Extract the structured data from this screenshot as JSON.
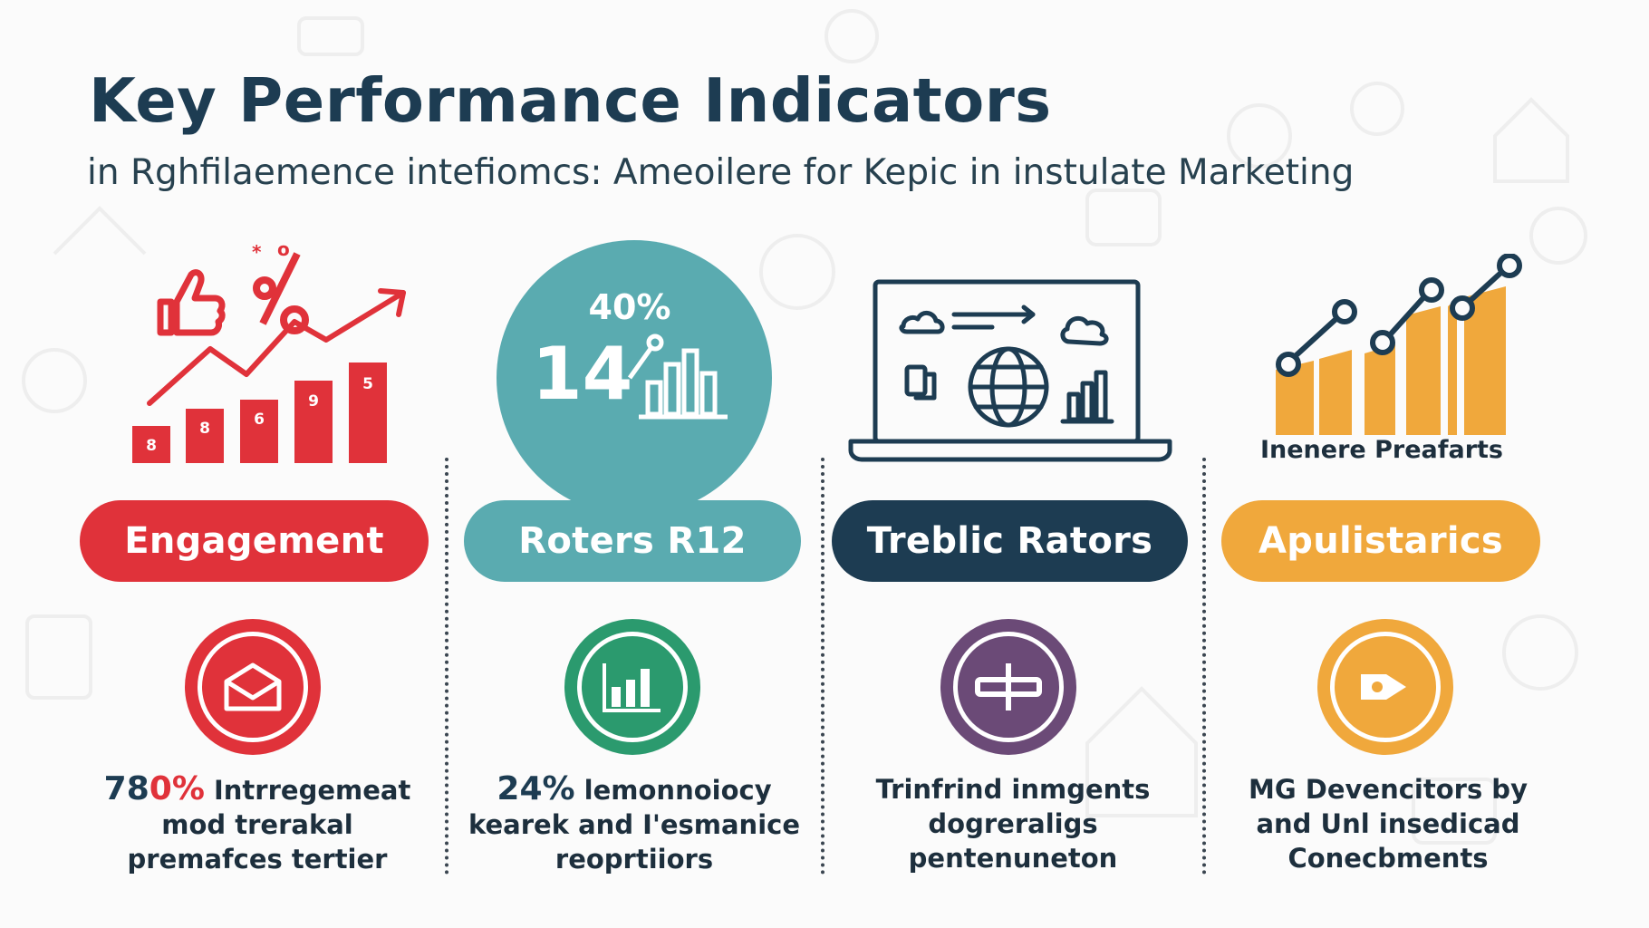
{
  "header": {
    "title": "Key Performance Indicators",
    "subtitle": "in Rghfilaemence intefiomcs: Ameoilere for Kepic in instulate Marketing"
  },
  "colors": {
    "red": "#e0323a",
    "teal": "#5aabb0",
    "navy": "#1d3c52",
    "orange": "#f0a83c",
    "green": "#2b9a6e",
    "purple": "#6b4a77"
  },
  "cards": [
    {
      "pill": "Engagement",
      "icon": "envelope-icon",
      "desc_number": "780%",
      "desc_lines": [
        "Intrregemeat",
        "mod trerakal",
        "premafces tertier"
      ],
      "bar_labels": [
        "8",
        "8",
        "6",
        "9",
        "5"
      ]
    },
    {
      "pill": "Roters R12",
      "icon": "bar-chart-icon",
      "circle_percent": "40%",
      "circle_number": "14",
      "desc_number": "24%",
      "desc_lines": [
        "lemonnoiocy",
        "kearek and I'esmanice",
        "reoprtiiors"
      ]
    },
    {
      "pill": "Treblic Rators",
      "icon": "plus-minus-icon",
      "desc_lines": [
        "Trinfrind inmgents",
        "dogreraligs",
        "pentenuneton"
      ]
    },
    {
      "pill": "Apulistarics",
      "icon": "arrow-right-icon",
      "chart_label": "Inenere Preafarts",
      "desc_lines": [
        "MG Devencitors by",
        "and Unl insedicad",
        "Conecbments"
      ]
    }
  ]
}
